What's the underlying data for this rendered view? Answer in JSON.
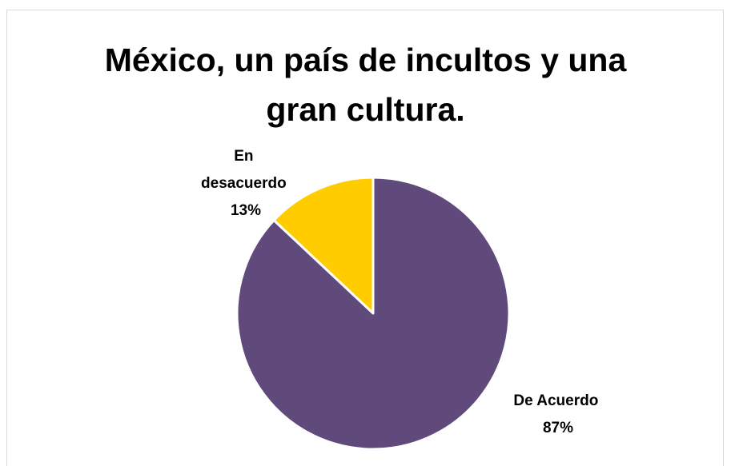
{
  "chart_data": {
    "type": "pie",
    "title_lines": [
      "México, un país de incultos y una",
      "gran cultura."
    ],
    "slices": [
      {
        "name_lines": [
          "En",
          "desacuerdo"
        ],
        "percent_label": "13%",
        "value": 13,
        "color": "#ffcc00"
      },
      {
        "name_lines": [
          "De Acuerdo"
        ],
        "percent_label": "87%",
        "value": 87,
        "color": "#604a7b"
      }
    ],
    "legend": "none",
    "labels_outside": true
  }
}
